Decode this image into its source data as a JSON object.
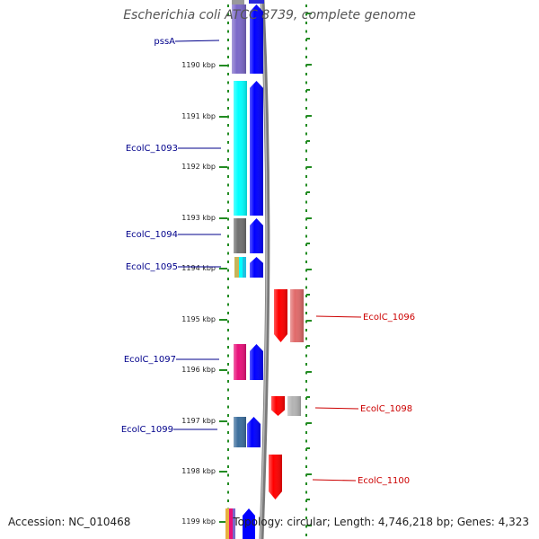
{
  "title": "Escherichia coli ATCC 8739, complete genome",
  "footer": {
    "accession": "Accession: NC_010468",
    "summary": "Topology: circular; Length: 4,746,218 bp; Genes: 4,323"
  },
  "colors": {
    "forward_strand": "#0000ff",
    "reverse_strand": "#ff0000",
    "forward_label": "#00008b",
    "reverse_label": "#cc0000",
    "tick_dots": "#228b22",
    "backbone": "#7a7a7a",
    "axis_text": "#222222"
  },
  "chart_data": {
    "type": "genome-map",
    "scale_ticks": [
      "1190 kbp",
      "1191 kbp",
      "1192 kbp",
      "1193 kbp",
      "1194 kbp",
      "1195 kbp",
      "1196 kbp",
      "1197 kbp",
      "1198 kbp",
      "1199 kbp"
    ],
    "forward_genes": [
      {
        "label": "pssA",
        "cog_color": "#7b68c8"
      },
      {
        "label": "EcolC_1093",
        "cog_color": "#00ffff"
      },
      {
        "label": "EcolC_1094",
        "cog_color": "#707070"
      },
      {
        "label": "EcolC_1095",
        "cog_color": "#c8b45a"
      },
      {
        "label": "EcolC_1097",
        "cog_color": "#e8107a"
      },
      {
        "label": "EcolC_1099",
        "cog_color": "#3c6e9c"
      }
    ],
    "reverse_genes": [
      {
        "label": "EcolC_1096",
        "cog_color": "#e06a6a"
      },
      {
        "label": "EcolC_1098",
        "cog_color": "#b4b4b4"
      },
      {
        "label": "EcolC_1100",
        "cog_color": ""
      }
    ]
  }
}
